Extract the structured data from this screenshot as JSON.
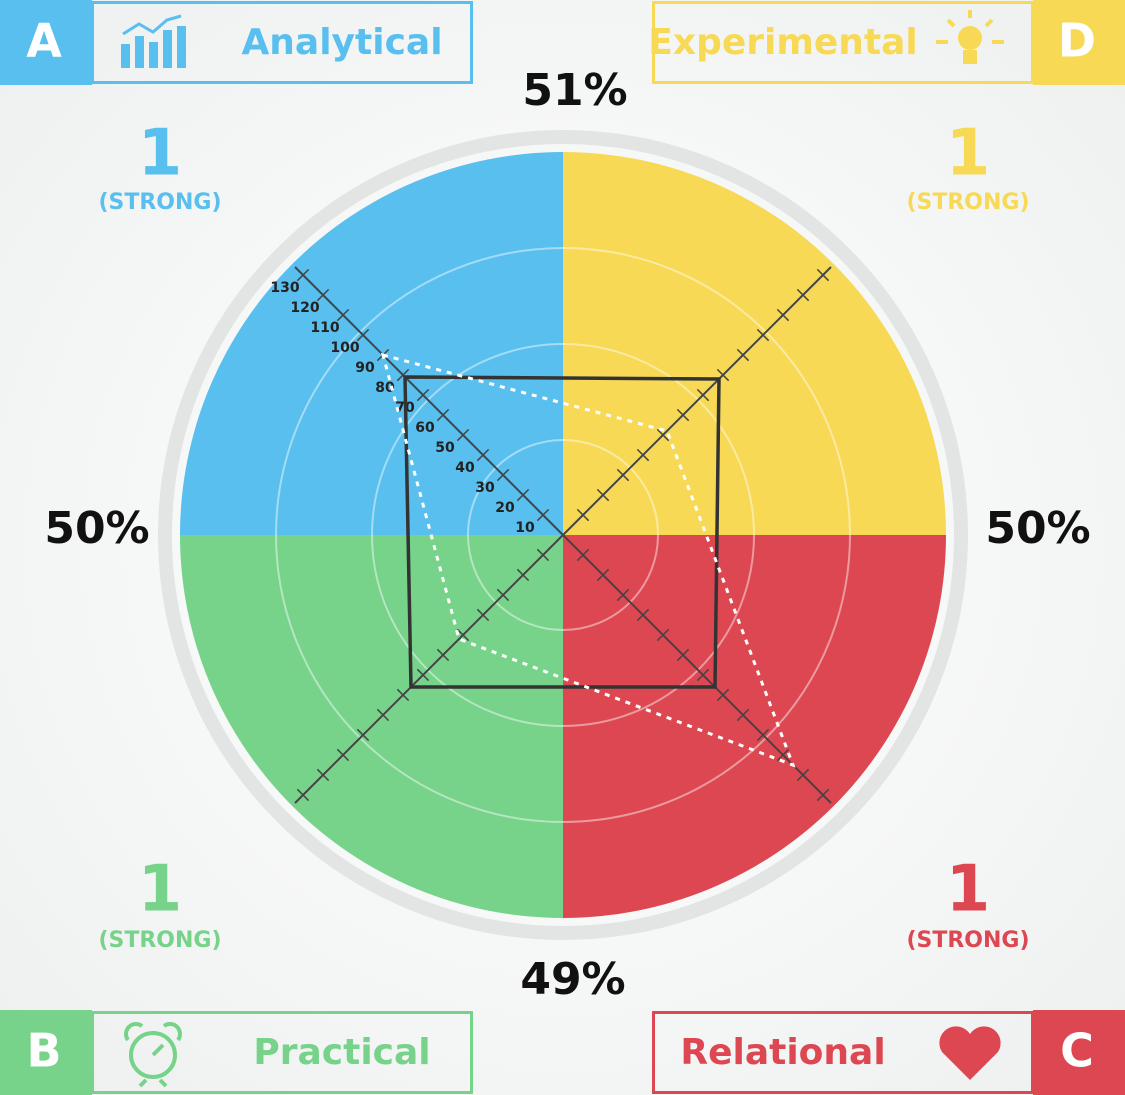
{
  "chart_data": {
    "type": "radar",
    "axes": [
      {
        "letter": "A",
        "name": "Analytical",
        "position": "top-left",
        "color": "#58bfef",
        "score": "1",
        "strength": "(STRONG)"
      },
      {
        "letter": "D",
        "name": "Experimental",
        "position": "top-right",
        "color": "#f7d955",
        "score": "1",
        "strength": "(STRONG)"
      },
      {
        "letter": "C",
        "name": "Relational",
        "position": "bottom-right",
        "color": "#dd4752",
        "score": "1",
        "strength": "(STRONG)"
      },
      {
        "letter": "B",
        "name": "Practical",
        "position": "bottom-left",
        "color": "#77d28a",
        "score": "1",
        "strength": "(STRONG)"
      }
    ],
    "rlim": [
      0,
      134
    ],
    "rticks": [
      10,
      20,
      30,
      40,
      50,
      60,
      70,
      80,
      90,
      100,
      110,
      120,
      130
    ],
    "series": [
      {
        "color": "#333333",
        "style": "solid",
        "values": [
          79,
          78,
          76,
          76
        ]
      },
      {
        "color": "#ffffff",
        "style": "dashed",
        "values": [
          90,
          52,
          115,
          52
        ]
      }
    ],
    "percentages": {
      "top": "51%",
      "left": "50%",
      "right": "50%",
      "bottom": "49%"
    }
  }
}
